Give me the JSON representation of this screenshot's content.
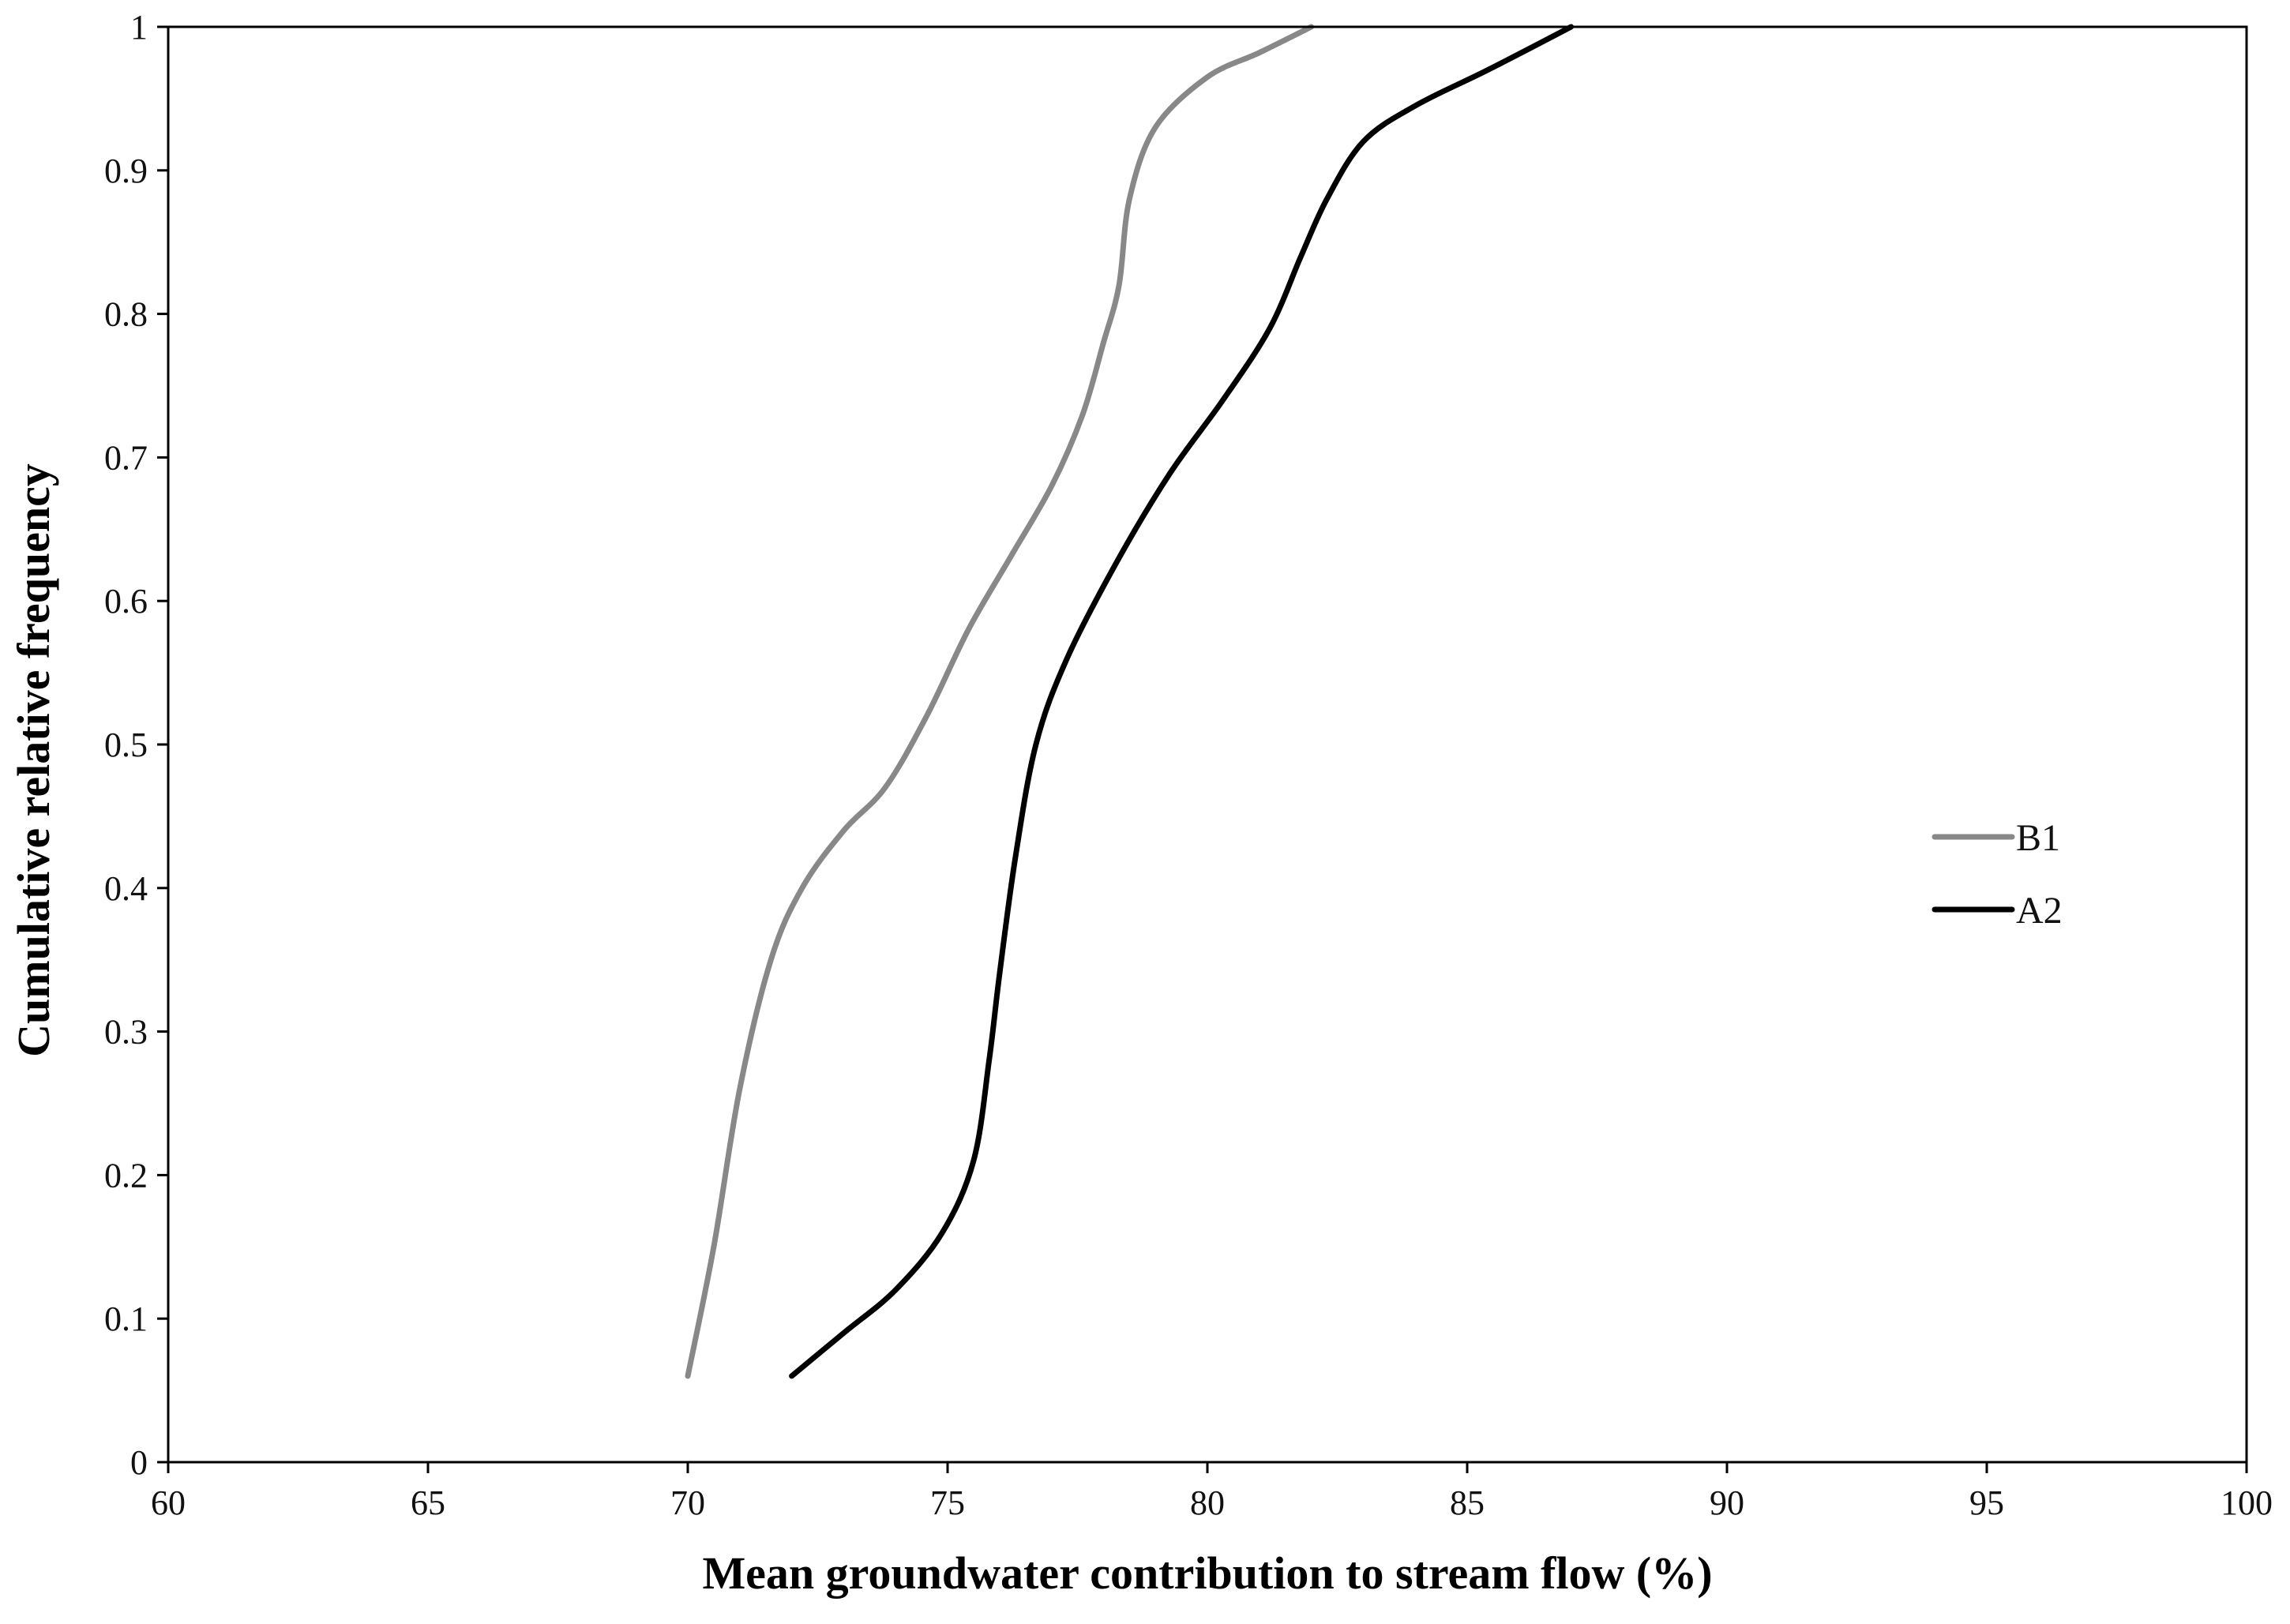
{
  "chart_data": {
    "type": "line",
    "title": "",
    "xlabel": "Mean groundwater contribution to stream flow (%)",
    "ylabel": "Cumulative relative frequency",
    "xlim": [
      60,
      100
    ],
    "ylim": [
      0,
      1
    ],
    "x_ticks": [
      "60",
      "65",
      "70",
      "75",
      "80",
      "85",
      "90",
      "95",
      "100"
    ],
    "y_ticks": [
      "0",
      "0.1",
      "0.2",
      "0.3",
      "0.4",
      "0.5",
      "0.6",
      "0.7",
      "0.8",
      "0.9",
      "1"
    ],
    "grid": false,
    "legend_position": "right",
    "series": [
      {
        "name": "B1",
        "color": "#888888",
        "points": [
          [
            70.0,
            0.06
          ],
          [
            70.5,
            0.15
          ],
          [
            71.0,
            0.26
          ],
          [
            71.6,
            0.35
          ],
          [
            72.2,
            0.4
          ],
          [
            73.0,
            0.44
          ],
          [
            73.8,
            0.47
          ],
          [
            74.6,
            0.52
          ],
          [
            75.4,
            0.58
          ],
          [
            76.2,
            0.63
          ],
          [
            77.0,
            0.68
          ],
          [
            77.6,
            0.73
          ],
          [
            78.0,
            0.78
          ],
          [
            78.3,
            0.82
          ],
          [
            78.5,
            0.88
          ],
          [
            79.0,
            0.93
          ],
          [
            80.0,
            0.965
          ],
          [
            81.0,
            0.982
          ],
          [
            82.0,
            1.0
          ]
        ]
      },
      {
        "name": "A2",
        "color": "#000000",
        "points": [
          [
            72.0,
            0.06
          ],
          [
            73.0,
            0.09
          ],
          [
            74.0,
            0.12
          ],
          [
            74.9,
            0.16
          ],
          [
            75.5,
            0.21
          ],
          [
            75.8,
            0.28
          ],
          [
            76.0,
            0.34
          ],
          [
            76.3,
            0.42
          ],
          [
            76.7,
            0.5
          ],
          [
            77.3,
            0.56
          ],
          [
            78.3,
            0.63
          ],
          [
            79.3,
            0.69
          ],
          [
            80.3,
            0.74
          ],
          [
            81.2,
            0.79
          ],
          [
            81.8,
            0.84
          ],
          [
            82.3,
            0.88
          ],
          [
            83.0,
            0.92
          ],
          [
            84.0,
            0.945
          ],
          [
            85.4,
            0.97
          ],
          [
            87.0,
            1.0
          ]
        ]
      }
    ]
  }
}
